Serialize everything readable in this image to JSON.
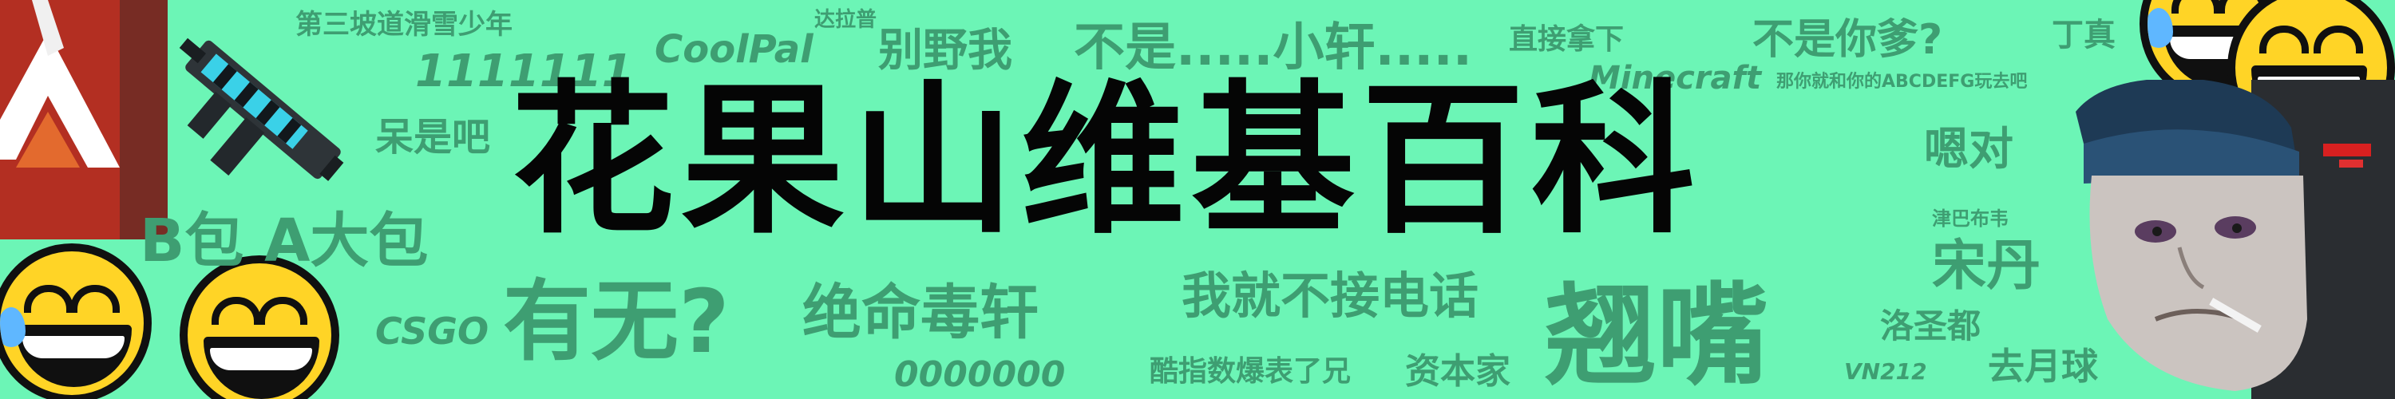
{
  "title": "花果山维基百科",
  "words": {
    "w1": "第三坡道滑雪少年",
    "w2": "达拉普",
    "w3": "1111111",
    "w4": "CoolPal",
    "w5": "别野我",
    "w6": "不是.....小轩.....",
    "w7": "直接拿下",
    "w8": "不是你爹?",
    "w9": "丁真",
    "w10": "Minecraft",
    "w11": "那你就和你的ABCDEFG玩去吧",
    "w12": "呆是吧",
    "w13": "嗯对",
    "w14": "B包 A大包",
    "w15": "津巴布韦",
    "w16": "宋丹",
    "w17": "CSGO",
    "w18": "有无?",
    "w19": "绝命毒轩",
    "w20": "我就不接电话",
    "w21": "翘嘴",
    "w22": "洛圣都",
    "w23": "0000000",
    "w24": "酷指数爆表了兄",
    "w25": "资本家",
    "w26": "VN212",
    "w27": "去月球"
  },
  "colors": {
    "background": "#6cf5b6",
    "words": "#3e9e72",
    "title": "#050505",
    "emoji_face": "#ffd426"
  },
  "icons": [
    "apex-logo-icon",
    "rifle-icon",
    "laughing-crying-emoji-icon",
    "grinning-emoji-icon",
    "wojak-face-icon"
  ]
}
